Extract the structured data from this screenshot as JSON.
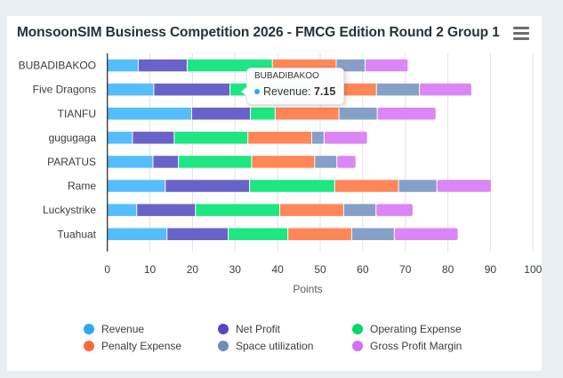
{
  "page": {
    "title": "MonsoonSIM Business Competition 2026 - FMCG Edition Round 2 Group 1",
    "menu_icon": "hamburger-menu-icon"
  },
  "chart_data": {
    "type": "bar",
    "orientation": "horizontal",
    "stacked": true,
    "title": "MonsoonSIM Business Competition 2026 - FMCG Edition Round 2 Group 1",
    "xlabel": "Points",
    "ylabel": "",
    "xlim": [
      0,
      100
    ],
    "x_ticks": [
      0,
      10,
      20,
      30,
      40,
      50,
      60,
      70,
      80,
      90,
      100
    ],
    "grid": true,
    "legend_position": "bottom",
    "categories": [
      "BUBADIBAKOO",
      "Five Dragons",
      "TIANFU",
      "gugugaga",
      "PARATUS",
      "Rame",
      "Luckystrike",
      "Tuahuat"
    ],
    "series": [
      {
        "name": "Revenue",
        "color": "#55bdfb",
        "legend_color": "#2ca9f9",
        "values": [
          7.15,
          10.8,
          19.7,
          5.8,
          10.6,
          13.5,
          6.8,
          13.9
        ]
      },
      {
        "name": "Net Profit",
        "color": "#6963c9",
        "legend_color": "#5347c7",
        "values": [
          11.5,
          17.9,
          13.8,
          9.8,
          6.0,
          19.8,
          13.8,
          14.4
        ]
      },
      {
        "name": "Operating Expense",
        "color": "#1ee683",
        "legend_color": "#0ad66a",
        "values": [
          20.0,
          19.4,
          5.8,
          17.3,
          17.2,
          20.0,
          19.8,
          14.0
        ]
      },
      {
        "name": "Penalty Expense",
        "color": "#ff8657",
        "legend_color": "#fb6a3b",
        "values": [
          15.0,
          15.0,
          15.0,
          15.0,
          14.8,
          15.0,
          15.0,
          15.0
        ]
      },
      {
        "name": "Space utilization",
        "color": "#869fc6",
        "legend_color": "#6f8bbd",
        "values": [
          6.8,
          10.1,
          9.0,
          2.9,
          5.2,
          9.0,
          7.6,
          10.0
        ]
      },
      {
        "name": "Gross Profit Margin",
        "color": "#dc85f7",
        "legend_color": "#d46ef5",
        "values": [
          10.1,
          12.3,
          13.8,
          10.2,
          4.5,
          12.8,
          8.7,
          15.0
        ]
      }
    ],
    "tooltip": {
      "category": "BUBADIBAKOO",
      "series": "Revenue",
      "label": "Revenue: ",
      "value": "7.15",
      "color": "#2ca9f9"
    }
  }
}
